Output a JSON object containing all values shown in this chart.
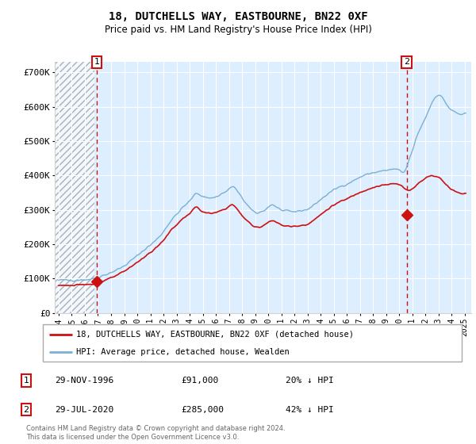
{
  "title": "18, DUTCHELLS WAY, EASTBOURNE, BN22 0XF",
  "subtitle": "Price paid vs. HM Land Registry's House Price Index (HPI)",
  "hpi_label": "HPI: Average price, detached house, Wealden",
  "price_label": "18, DUTCHELLS WAY, EASTBOURNE, BN22 0XF (detached house)",
  "hpi_color": "#7bafd4",
  "price_color": "#cc1111",
  "marker_color": "#cc1111",
  "annotation_box_color": "#cc1111",
  "bg_color": "#ddeeff",
  "ylim": [
    0,
    730000
  ],
  "yticks": [
    0,
    100000,
    200000,
    300000,
    400000,
    500000,
    600000,
    700000
  ],
  "ytick_labels": [
    "£0",
    "£100K",
    "£200K",
    "£300K",
    "£400K",
    "£500K",
    "£600K",
    "£700K"
  ],
  "xlim_start": 1993.7,
  "xlim_end": 2025.5,
  "footer": "Contains HM Land Registry data © Crown copyright and database right 2024.\nThis data is licensed under the Open Government Licence v3.0.",
  "transaction1_date": "29-NOV-1996",
  "transaction1_price": "£91,000",
  "transaction1_note": "20% ↓ HPI",
  "transaction1_x": 1996.92,
  "transaction1_y": 91000,
  "transaction2_date": "29-JUL-2020",
  "transaction2_price": "£285,000",
  "transaction2_note": "42% ↓ HPI",
  "transaction2_x": 2020.58,
  "transaction2_y": 285000,
  "hatch_end": 1996.7
}
